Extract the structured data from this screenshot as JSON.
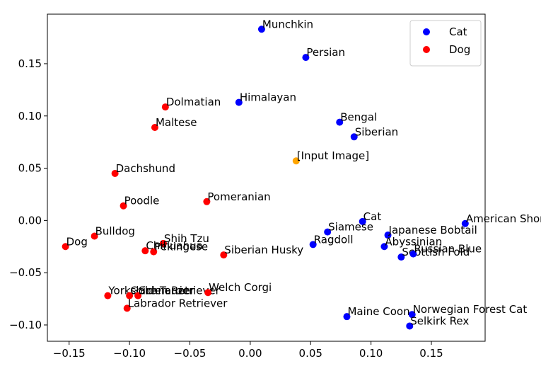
{
  "chart_data": {
    "type": "scatter",
    "xlim": [
      -0.168,
      0.1945
    ],
    "ylim": [
      -0.1156,
      0.1974
    ],
    "xticks": [
      {
        "value": -0.15,
        "label": "−0.15"
      },
      {
        "value": -0.1,
        "label": "−0.10"
      },
      {
        "value": -0.05,
        "label": "−0.05"
      },
      {
        "value": 0,
        "label": "0.00"
      },
      {
        "value": 0.05,
        "label": "0.05"
      },
      {
        "value": 0.1,
        "label": "0.10"
      },
      {
        "value": 0.15,
        "label": "0.15"
      }
    ],
    "yticks": [
      {
        "value": -0.1,
        "label": "−0.10"
      },
      {
        "value": -0.05,
        "label": "−0.05"
      },
      {
        "value": 0,
        "label": "0.00"
      },
      {
        "value": 0.05,
        "label": "0.05"
      },
      {
        "value": 0.1,
        "label": "0.10"
      },
      {
        "value": 0.15,
        "label": "0.15"
      }
    ],
    "grid": false,
    "legend": "upper right",
    "series": [
      {
        "name": "Cat",
        "color": "#0000ff",
        "labels": [
          "Munchkin",
          "Persian",
          "Himalayan",
          "Bengal",
          "Siberian",
          "Cat",
          "Siamese",
          "Ragdoll",
          "American Shorthair",
          "Japanese Bobtail",
          "Abyssinian",
          "Scottish Fold",
          "Russian Blue",
          "Maine Coon",
          "Norwegian Forest Cat",
          "Selkirk Rex"
        ],
        "x": [
          0.0094,
          0.046,
          -0.0094,
          0.074,
          0.086,
          0.093,
          0.064,
          0.052,
          0.178,
          0.114,
          0.111,
          0.125,
          0.135,
          0.08,
          0.134,
          0.132
        ],
        "y": [
          0.183,
          0.156,
          0.113,
          0.094,
          0.08,
          -0.001,
          -0.011,
          -0.023,
          -0.003,
          -0.014,
          -0.025,
          -0.035,
          -0.032,
          -0.092,
          -0.09,
          -0.101
        ]
      },
      {
        "name": "Dog",
        "color": "#ff0000",
        "labels": [
          "Dolmatian",
          "Maltese",
          "Dachshund",
          "Poodle",
          "Pomeranian",
          "Bulldog",
          "Dog",
          "Shih Tzu",
          "Chihuahua",
          "Pekingese",
          "Siberian Husky",
          "Yorkshire Terrier",
          "Golden Retriever",
          "Schnauzer",
          "Welch Corgi",
          "Labrador Retriever"
        ],
        "x": [
          -0.0703,
          -0.079,
          -0.112,
          -0.105,
          -0.036,
          -0.129,
          -0.153,
          -0.072,
          -0.087,
          -0.08,
          -0.022,
          -0.118,
          -0.1,
          -0.093,
          -0.035,
          -0.102
        ],
        "y": [
          0.1086,
          0.089,
          0.045,
          0.014,
          0.018,
          -0.015,
          -0.025,
          -0.022,
          -0.029,
          -0.03,
          -0.033,
          -0.072,
          -0.072,
          -0.072,
          -0.069,
          -0.084
        ]
      }
    ],
    "query": {
      "label": "[Input Image]",
      "x": 0.038,
      "y": 0.057,
      "color": "#ffa500"
    }
  }
}
